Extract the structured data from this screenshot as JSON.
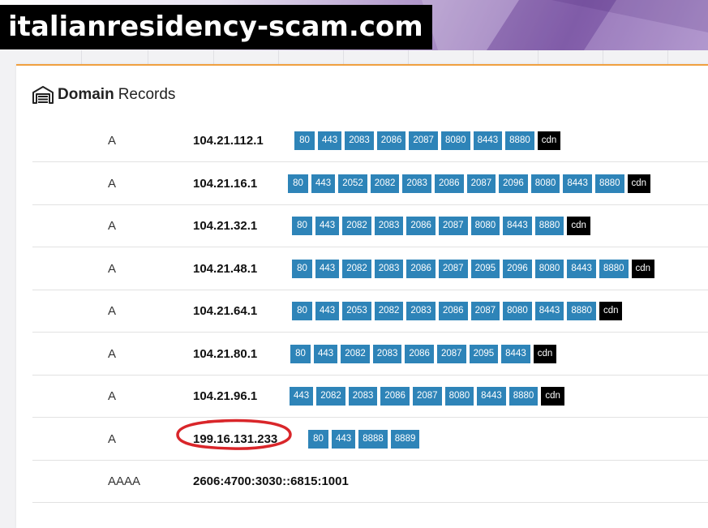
{
  "site": {
    "title": "italianresidency-scam.com"
  },
  "section": {
    "bold": "Domain",
    "rest": "Records"
  },
  "records": [
    {
      "type": "A",
      "value": "104.21.112.1",
      "ports": [
        "80",
        "443",
        "2083",
        "2086",
        "2087",
        "8080",
        "8443",
        "8880",
        "cdn"
      ]
    },
    {
      "type": "A",
      "value": "104.21.16.1",
      "ports": [
        "80",
        "443",
        "2052",
        "2082",
        "2083",
        "2086",
        "2087",
        "2096",
        "8080",
        "8443",
        "8880",
        "cdn"
      ]
    },
    {
      "type": "A",
      "value": "104.21.32.1",
      "ports": [
        "80",
        "443",
        "2082",
        "2083",
        "2086",
        "2087",
        "8080",
        "8443",
        "8880",
        "cdn"
      ]
    },
    {
      "type": "A",
      "value": "104.21.48.1",
      "ports": [
        "80",
        "443",
        "2082",
        "2083",
        "2086",
        "2087",
        "2095",
        "2096",
        "8080",
        "8443",
        "8880",
        "cdn"
      ]
    },
    {
      "type": "A",
      "value": "104.21.64.1",
      "ports": [
        "80",
        "443",
        "2053",
        "2082",
        "2083",
        "2086",
        "2087",
        "8080",
        "8443",
        "8880",
        "cdn"
      ]
    },
    {
      "type": "A",
      "value": "104.21.80.1",
      "ports": [
        "80",
        "443",
        "2082",
        "2083",
        "2086",
        "2087",
        "2095",
        "8443",
        "cdn"
      ]
    },
    {
      "type": "A",
      "value": "104.21.96.1",
      "ports": [
        "443",
        "2082",
        "2083",
        "2086",
        "2087",
        "8080",
        "8443",
        "8880",
        "cdn"
      ]
    },
    {
      "type": "A",
      "value": "199.16.131.233",
      "ports": [
        "80",
        "443",
        "8888",
        "8889"
      ],
      "highlighted": true
    },
    {
      "type": "AAAA",
      "value": "2606:4700:3030::6815:1001",
      "ports": []
    }
  ],
  "colors": {
    "port": "#2e84b8",
    "cdn": "#000000",
    "accent": "#f0a040",
    "highlight_circle": "#d9262a"
  },
  "icons": {
    "section": "garage-icon"
  }
}
